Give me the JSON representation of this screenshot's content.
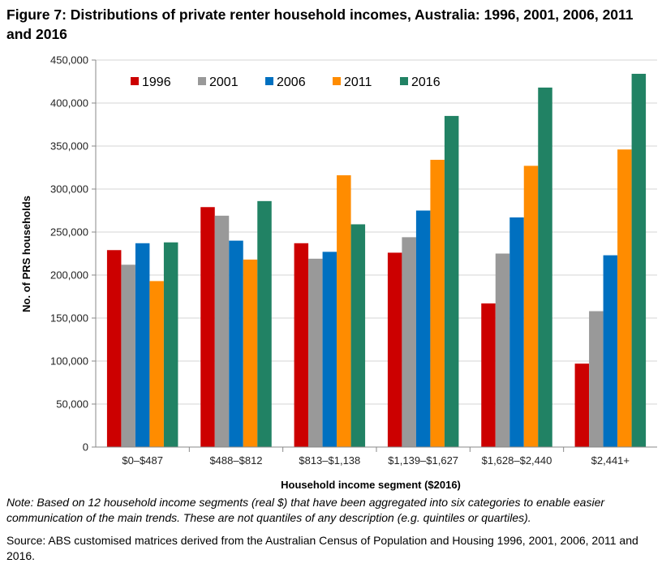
{
  "figure": {
    "title": "Figure 7: Distributions of private renter household incomes, Australia: 1996, 2001, 2006, 2011 and 2016",
    "note": "Note: Based on 12 household income segments (real $) that have been aggregated into six categories to enable easier communication of the main trends. These are not quantiles of any description (e.g. quintiles or quartiles).",
    "source": "Source: ABS customised matrices derived from the Australian Census of Population and Housing 1996, 2001, 2006, 2011 and 2016."
  },
  "chart_data": {
    "type": "bar",
    "title": "Figure 7: Distributions of private renter household incomes, Australia: 1996, 2001, 2006, 2011 and 2016",
    "xlabel": "Household income segment ($2016)",
    "ylabel": "No. of PRS households",
    "categories": [
      "$0–$487",
      "$488–$812",
      "$813–$1,138",
      "$1,139–$1,627",
      "$1,628–$2,440",
      "$2,441+"
    ],
    "ylim": [
      0,
      450000
    ],
    "yticks": [
      0,
      50000,
      100000,
      150000,
      200000,
      250000,
      300000,
      350000,
      400000,
      450000
    ],
    "ytick_labels": [
      "0",
      "50,000",
      "100,000",
      "150,000",
      "200,000",
      "250,000",
      "300,000",
      "350,000",
      "400,000",
      "450,000"
    ],
    "grid": "horizontal",
    "legend_position": "top-left",
    "series": [
      {
        "name": "1996",
        "color": "#cc0000",
        "values": [
          229000,
          279000,
          237000,
          226000,
          167000,
          97000
        ]
      },
      {
        "name": "2001",
        "color": "#999999",
        "values": [
          212000,
          269000,
          219000,
          244000,
          225000,
          158000
        ]
      },
      {
        "name": "2006",
        "color": "#0070c0",
        "values": [
          237000,
          240000,
          227000,
          275000,
          267000,
          223000
        ]
      },
      {
        "name": "2011",
        "color": "#ff8c00",
        "values": [
          193000,
          218000,
          316000,
          334000,
          327000,
          346000
        ]
      },
      {
        "name": "2016",
        "color": "#218264",
        "values": [
          238000,
          286000,
          259000,
          385000,
          418000,
          434000
        ]
      }
    ]
  }
}
